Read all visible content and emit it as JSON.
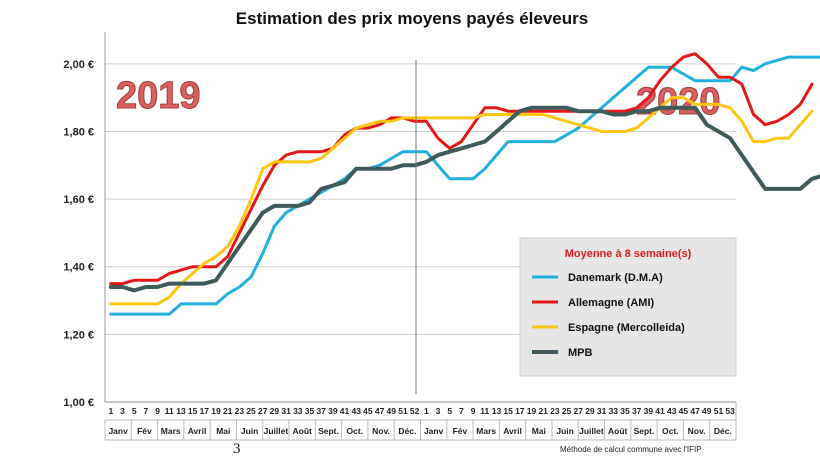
{
  "chart_data": {
    "type": "line",
    "title": "Estimation des prix moyens payés éleveurs",
    "y_ticks": [
      "1,00 €",
      "1,20 €",
      "1,40 €",
      "1,60 €",
      "1,80 €",
      "2,00 €"
    ],
    "ylim": [
      1.0,
      2.1
    ],
    "x_week_labels": [
      "1",
      "3",
      "5",
      "7",
      "9",
      "11",
      "13",
      "15",
      "17",
      "19",
      "21",
      "23",
      "25",
      "27",
      "29",
      "31",
      "33",
      "35",
      "37",
      "39",
      "41",
      "43",
      "45",
      "47",
      "49",
      "51",
      "52",
      "1",
      "3",
      "5",
      "7",
      "9",
      "11",
      "13",
      "15",
      "17",
      "19",
      "21",
      "23",
      "25",
      "27",
      "29",
      "31",
      "33",
      "35",
      "37",
      "39",
      "41",
      "43",
      "45",
      "47",
      "49",
      "51",
      "53"
    ],
    "months": [
      "Janv",
      "Fév",
      "Mars",
      "Avril",
      "Mai",
      "Juin",
      "Juillet",
      "Août",
      "Sept.",
      "Oct.",
      "Nov.",
      "Déc.",
      "Janv",
      "Fév",
      "Mars",
      "Avril",
      "Mai",
      "Juin",
      "Juillet",
      "Août",
      "Sept.",
      "Oct.",
      "Nov.",
      "Déc."
    ],
    "year_labels": [
      "2019",
      "2020"
    ],
    "legend_title": "Moyenne à  8 semaine(s)",
    "legend_position": "center-right",
    "grid": true,
    "series": [
      {
        "name": "Danemark (D.M.A)",
        "color": "#1fb0e0",
        "points": [
          [
            1,
            1.26
          ],
          [
            2,
            1.26
          ],
          [
            3,
            1.26
          ],
          [
            4,
            1.26
          ],
          [
            5,
            1.26
          ],
          [
            6,
            1.26
          ],
          [
            7,
            1.29
          ],
          [
            8,
            1.29
          ],
          [
            9,
            1.29
          ],
          [
            10,
            1.29
          ],
          [
            11,
            1.32
          ],
          [
            12,
            1.34
          ],
          [
            13,
            1.37
          ],
          [
            14,
            1.44
          ],
          [
            15,
            1.52
          ],
          [
            16,
            1.56
          ],
          [
            17,
            1.58
          ],
          [
            18,
            1.6
          ],
          [
            19,
            1.62
          ],
          [
            20,
            1.64
          ],
          [
            21,
            1.66
          ],
          [
            22,
            1.69
          ],
          [
            23,
            1.69
          ],
          [
            24,
            1.7
          ],
          [
            25,
            1.72
          ],
          [
            26,
            1.74
          ],
          [
            27,
            1.74
          ],
          [
            28,
            1.74
          ],
          [
            29,
            1.7
          ],
          [
            30,
            1.66
          ],
          [
            31,
            1.66
          ],
          [
            32,
            1.66
          ],
          [
            33,
            1.69
          ],
          [
            34,
            1.73
          ],
          [
            35,
            1.77
          ],
          [
            36,
            1.77
          ],
          [
            37,
            1.77
          ],
          [
            38,
            1.77
          ],
          [
            39,
            1.77
          ],
          [
            40,
            1.79
          ],
          [
            41,
            1.81
          ],
          [
            42,
            1.84
          ],
          [
            43,
            1.87
          ],
          [
            44,
            1.9
          ],
          [
            45,
            1.93
          ],
          [
            46,
            1.96
          ],
          [
            47,
            1.99
          ],
          [
            48,
            1.99
          ],
          [
            49,
            1.99
          ],
          [
            50,
            1.97
          ],
          [
            51,
            1.95
          ],
          [
            52,
            1.95
          ],
          [
            53,
            1.95
          ],
          [
            54,
            1.95
          ],
          [
            55,
            1.99
          ],
          [
            56,
            1.98
          ],
          [
            57,
            2.0
          ],
          [
            58,
            2.01
          ],
          [
            59,
            2.02
          ],
          [
            60,
            2.02
          ],
          [
            61,
            2.02
          ],
          [
            62,
            2.02
          ]
        ]
      },
      {
        "name": "Allemagne (AMI)",
        "color": "#e51717",
        "points": [
          [
            1,
            1.35
          ],
          [
            2,
            1.35
          ],
          [
            3,
            1.36
          ],
          [
            4,
            1.36
          ],
          [
            5,
            1.36
          ],
          [
            6,
            1.38
          ],
          [
            7,
            1.39
          ],
          [
            8,
            1.4
          ],
          [
            9,
            1.4
          ],
          [
            10,
            1.4
          ],
          [
            11,
            1.43
          ],
          [
            12,
            1.5
          ],
          [
            13,
            1.57
          ],
          [
            14,
            1.64
          ],
          [
            15,
            1.7
          ],
          [
            16,
            1.73
          ],
          [
            17,
            1.74
          ],
          [
            18,
            1.74
          ],
          [
            19,
            1.74
          ],
          [
            20,
            1.75
          ],
          [
            21,
            1.79
          ],
          [
            22,
            1.81
          ],
          [
            23,
            1.81
          ],
          [
            24,
            1.82
          ],
          [
            25,
            1.84
          ],
          [
            26,
            1.84
          ],
          [
            27,
            1.83
          ],
          [
            28,
            1.83
          ],
          [
            29,
            1.78
          ],
          [
            30,
            1.75
          ],
          [
            31,
            1.77
          ],
          [
            32,
            1.82
          ],
          [
            33,
            1.87
          ],
          [
            34,
            1.87
          ],
          [
            35,
            1.86
          ],
          [
            36,
            1.86
          ],
          [
            37,
            1.86
          ],
          [
            38,
            1.86
          ],
          [
            39,
            1.86
          ],
          [
            40,
            1.86
          ],
          [
            41,
            1.86
          ],
          [
            42,
            1.86
          ],
          [
            43,
            1.86
          ],
          [
            44,
            1.86
          ],
          [
            45,
            1.86
          ],
          [
            46,
            1.87
          ],
          [
            47,
            1.9
          ],
          [
            48,
            1.95
          ],
          [
            49,
            1.99
          ],
          [
            50,
            2.02
          ],
          [
            51,
            2.03
          ],
          [
            52,
            2.0
          ],
          [
            53,
            1.96
          ],
          [
            54,
            1.96
          ],
          [
            55,
            1.94
          ],
          [
            56,
            1.85
          ],
          [
            57,
            1.82
          ],
          [
            58,
            1.83
          ],
          [
            59,
            1.85
          ],
          [
            60,
            1.88
          ],
          [
            61,
            1.94
          ]
        ]
      },
      {
        "name": "Espagne (Mercolleida)",
        "color": "#ffc511",
        "points": [
          [
            1,
            1.29
          ],
          [
            2,
            1.29
          ],
          [
            3,
            1.29
          ],
          [
            4,
            1.29
          ],
          [
            5,
            1.29
          ],
          [
            6,
            1.31
          ],
          [
            7,
            1.35
          ],
          [
            8,
            1.38
          ],
          [
            9,
            1.41
          ],
          [
            10,
            1.43
          ],
          [
            11,
            1.46
          ],
          [
            12,
            1.52
          ],
          [
            13,
            1.6
          ],
          [
            14,
            1.69
          ],
          [
            15,
            1.71
          ],
          [
            16,
            1.71
          ],
          [
            17,
            1.71
          ],
          [
            18,
            1.71
          ],
          [
            19,
            1.72
          ],
          [
            20,
            1.75
          ],
          [
            21,
            1.78
          ],
          [
            22,
            1.81
          ],
          [
            23,
            1.82
          ],
          [
            24,
            1.83
          ],
          [
            25,
            1.83
          ],
          [
            26,
            1.84
          ],
          [
            27,
            1.84
          ],
          [
            28,
            1.84
          ],
          [
            29,
            1.84
          ],
          [
            30,
            1.84
          ],
          [
            31,
            1.84
          ],
          [
            32,
            1.84
          ],
          [
            33,
            1.85
          ],
          [
            34,
            1.85
          ],
          [
            35,
            1.85
          ],
          [
            36,
            1.85
          ],
          [
            37,
            1.85
          ],
          [
            38,
            1.85
          ],
          [
            39,
            1.84
          ],
          [
            40,
            1.83
          ],
          [
            41,
            1.82
          ],
          [
            42,
            1.81
          ],
          [
            43,
            1.8
          ],
          [
            44,
            1.8
          ],
          [
            45,
            1.8
          ],
          [
            46,
            1.81
          ],
          [
            47,
            1.84
          ],
          [
            48,
            1.87
          ],
          [
            49,
            1.9
          ],
          [
            50,
            1.9
          ],
          [
            51,
            1.88
          ],
          [
            52,
            1.88
          ],
          [
            53,
            1.88
          ],
          [
            54,
            1.87
          ],
          [
            55,
            1.83
          ],
          [
            56,
            1.77
          ],
          [
            57,
            1.77
          ],
          [
            58,
            1.78
          ],
          [
            59,
            1.78
          ],
          [
            60,
            1.82
          ],
          [
            61,
            1.86
          ]
        ]
      },
      {
        "name": "MPB",
        "color": "#3f5a5a",
        "points": [
          [
            1,
            1.34
          ],
          [
            2,
            1.34
          ],
          [
            3,
            1.33
          ],
          [
            4,
            1.34
          ],
          [
            5,
            1.34
          ],
          [
            6,
            1.35
          ],
          [
            7,
            1.35
          ],
          [
            8,
            1.35
          ],
          [
            9,
            1.35
          ],
          [
            10,
            1.36
          ],
          [
            11,
            1.41
          ],
          [
            12,
            1.46
          ],
          [
            13,
            1.51
          ],
          [
            14,
            1.56
          ],
          [
            15,
            1.58
          ],
          [
            16,
            1.58
          ],
          [
            17,
            1.58
          ],
          [
            18,
            1.59
          ],
          [
            19,
            1.63
          ],
          [
            20,
            1.64
          ],
          [
            21,
            1.65
          ],
          [
            22,
            1.69
          ],
          [
            23,
            1.69
          ],
          [
            24,
            1.69
          ],
          [
            25,
            1.69
          ],
          [
            26,
            1.7
          ],
          [
            27,
            1.7
          ],
          [
            28,
            1.71
          ],
          [
            29,
            1.73
          ],
          [
            30,
            1.74
          ],
          [
            31,
            1.75
          ],
          [
            32,
            1.76
          ],
          [
            33,
            1.77
          ],
          [
            34,
            1.8
          ],
          [
            35,
            1.83
          ],
          [
            36,
            1.86
          ],
          [
            37,
            1.87
          ],
          [
            38,
            1.87
          ],
          [
            39,
            1.87
          ],
          [
            40,
            1.87
          ],
          [
            41,
            1.86
          ],
          [
            42,
            1.86
          ],
          [
            43,
            1.86
          ],
          [
            44,
            1.85
          ],
          [
            45,
            1.85
          ],
          [
            46,
            1.86
          ],
          [
            47,
            1.86
          ],
          [
            48,
            1.87
          ],
          [
            49,
            1.87
          ],
          [
            50,
            1.87
          ],
          [
            51,
            1.87
          ],
          [
            52,
            1.82
          ],
          [
            53,
            1.8
          ],
          [
            54,
            1.78
          ],
          [
            55,
            1.73
          ],
          [
            56,
            1.68
          ],
          [
            57,
            1.63
          ],
          [
            58,
            1.63
          ],
          [
            59,
            1.63
          ],
          [
            60,
            1.63
          ],
          [
            61,
            1.66
          ],
          [
            62,
            1.67
          ]
        ]
      }
    ]
  },
  "footnote": "Méthode de calcul commune avec l'IFIP",
  "page_number": "3"
}
